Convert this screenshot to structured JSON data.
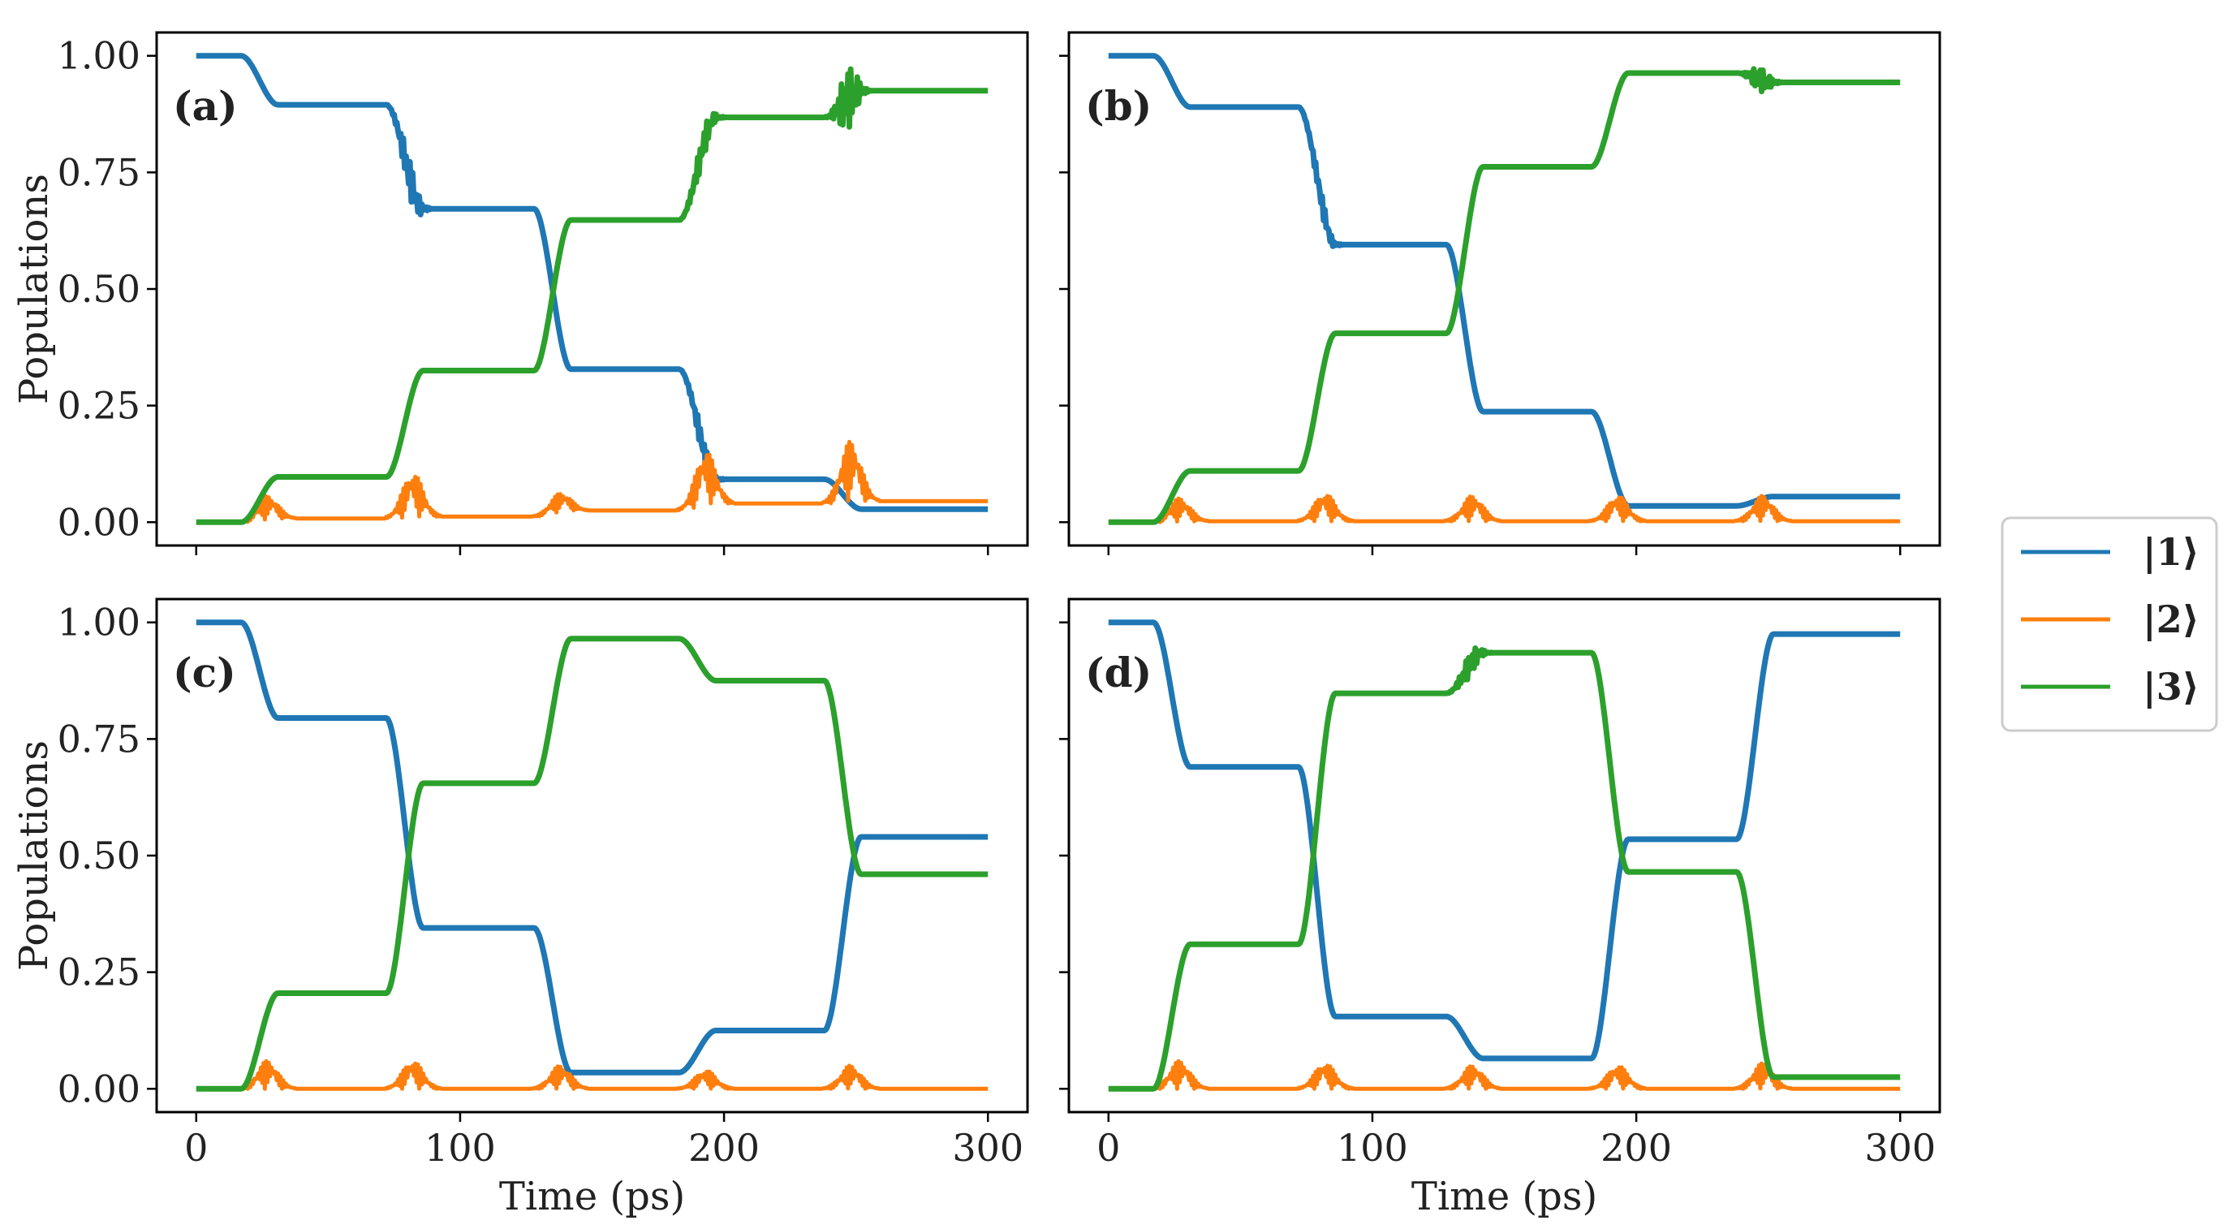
{
  "chart_data": [
    {
      "type": "line",
      "panel": "(a)",
      "xlabel": "",
      "ylabel": "Populations",
      "xlim": [
        -15,
        315
      ],
      "ylim": [
        -0.05,
        1.05
      ],
      "xticks": [
        0,
        100,
        200,
        300
      ],
      "yticks": [
        0.0,
        0.25,
        0.5,
        0.75,
        1.0
      ],
      "show_x_tick_labels": false,
      "show_y_tick_labels": true,
      "series": [
        {
          "name": "|1⟩",
          "color": "#1f77b4",
          "steps": [
            [
              0,
              1.0
            ],
            [
              31,
              0.895
            ],
            [
              86,
              0.672
            ],
            [
              142,
              0.328
            ],
            [
              197,
              0.092
            ],
            [
              252,
              0.028
            ]
          ],
          "width": 7,
          "osc": [
            [
              86,
              0.08
            ],
            [
              197,
              0.05
            ]
          ]
        },
        {
          "name": "|2⟩",
          "color": "#ff7f0e",
          "steps": [
            [
              0,
              0.0
            ],
            [
              31,
              0.008
            ],
            [
              86,
              0.012
            ],
            [
              142,
              0.025
            ],
            [
              197,
              0.04
            ],
            [
              252,
              0.045
            ]
          ],
          "width": 5,
          "bursts": [
            [
              31,
              0.05
            ],
            [
              86,
              0.095
            ],
            [
              142,
              0.04
            ],
            [
              197,
              0.115
            ],
            [
              252,
              0.13
            ]
          ]
        },
        {
          "name": "|3⟩",
          "color": "#2ca02c",
          "steps": [
            [
              0,
              0.0
            ],
            [
              31,
              0.097
            ],
            [
              86,
              0.325
            ],
            [
              142,
              0.648
            ],
            [
              197,
              0.868
            ],
            [
              252,
              0.925
            ]
          ],
          "width": 7,
          "osc": [
            [
              197,
              0.06
            ],
            [
              252,
              0.13
            ]
          ]
        }
      ]
    },
    {
      "type": "line",
      "panel": "(b)",
      "xlabel": "",
      "ylabel": "",
      "xlim": [
        -15,
        315
      ],
      "ylim": [
        -0.05,
        1.05
      ],
      "xticks": [
        0,
        100,
        200,
        300
      ],
      "yticks": [
        0.0,
        0.25,
        0.5,
        0.75,
        1.0
      ],
      "show_x_tick_labels": false,
      "show_y_tick_labels": false,
      "series": [
        {
          "name": "|1⟩",
          "color": "#1f77b4",
          "steps": [
            [
              0,
              1.0
            ],
            [
              31,
              0.89
            ],
            [
              86,
              0.595
            ],
            [
              142,
              0.237
            ],
            [
              197,
              0.035
            ],
            [
              252,
              0.055
            ]
          ],
          "width": 7,
          "osc": [
            [
              86,
              0.04
            ]
          ]
        },
        {
          "name": "|2⟩",
          "color": "#ff7f0e",
          "steps": [
            [
              0,
              0.0
            ],
            [
              31,
              0.002
            ],
            [
              86,
              0.002
            ],
            [
              142,
              0.002
            ],
            [
              197,
              0.002
            ],
            [
              252,
              0.002
            ]
          ],
          "width": 5,
          "bursts": [
            [
              31,
              0.05
            ],
            [
              86,
              0.06
            ],
            [
              142,
              0.055
            ],
            [
              197,
              0.055
            ],
            [
              252,
              0.055
            ]
          ]
        },
        {
          "name": "|3⟩",
          "color": "#2ca02c",
          "steps": [
            [
              0,
              0.0
            ],
            [
              31,
              0.11
            ],
            [
              86,
              0.405
            ],
            [
              142,
              0.762
            ],
            [
              197,
              0.963
            ],
            [
              252,
              0.943
            ]
          ],
          "width": 7,
          "osc": [
            [
              252,
              0.05
            ]
          ]
        }
      ]
    },
    {
      "type": "line",
      "panel": "(c)",
      "xlabel": "Time (ps)",
      "ylabel": "Populations",
      "xlim": [
        -15,
        315
      ],
      "ylim": [
        -0.05,
        1.05
      ],
      "xticks": [
        0,
        100,
        200,
        300
      ],
      "yticks": [
        0.0,
        0.25,
        0.5,
        0.75,
        1.0
      ],
      "show_x_tick_labels": true,
      "show_y_tick_labels": true,
      "series": [
        {
          "name": "|1⟩",
          "color": "#1f77b4",
          "steps": [
            [
              0,
              1.0
            ],
            [
              31,
              0.795
            ],
            [
              86,
              0.345
            ],
            [
              142,
              0.035
            ],
            [
              197,
              0.125
            ],
            [
              252,
              0.54
            ]
          ],
          "width": 7
        },
        {
          "name": "|2⟩",
          "color": "#ff7f0e",
          "steps": [
            [
              0,
              0.0
            ],
            [
              31,
              0.0
            ],
            [
              86,
              0.0
            ],
            [
              142,
              0.0
            ],
            [
              197,
              0.0
            ],
            [
              252,
              0.0
            ]
          ],
          "width": 5,
          "bursts": [
            [
              31,
              0.06
            ],
            [
              86,
              0.06
            ],
            [
              142,
              0.05
            ],
            [
              197,
              0.04
            ],
            [
              252,
              0.05
            ]
          ]
        },
        {
          "name": "|3⟩",
          "color": "#2ca02c",
          "steps": [
            [
              0,
              0.0
            ],
            [
              31,
              0.205
            ],
            [
              86,
              0.655
            ],
            [
              142,
              0.965
            ],
            [
              197,
              0.875
            ],
            [
              252,
              0.46
            ]
          ],
          "width": 7
        },
        {
          "name": "|3⟩",
          "color": "#2ca02c",
          "steps": [],
          "width": 7
        }
      ]
    },
    {
      "type": "line",
      "panel": "(d)",
      "xlabel": "Time (ps)",
      "ylabel": "",
      "xlim": [
        -15,
        315
      ],
      "ylim": [
        -0.05,
        1.05
      ],
      "xticks": [
        0,
        100,
        200,
        300
      ],
      "yticks": [
        0.0,
        0.25,
        0.5,
        0.75,
        1.0
      ],
      "show_x_tick_labels": true,
      "show_y_tick_labels": false,
      "series": [
        {
          "name": "|1⟩",
          "color": "#1f77b4",
          "steps": [
            [
              0,
              1.0
            ],
            [
              31,
              0.69
            ],
            [
              86,
              0.155
            ],
            [
              142,
              0.065
            ],
            [
              197,
              0.535
            ],
            [
              252,
              0.975
            ]
          ],
          "width": 7
        },
        {
          "name": "|2⟩",
          "color": "#ff7f0e",
          "steps": [
            [
              0,
              0.0
            ],
            [
              31,
              0.0
            ],
            [
              86,
              0.0
            ],
            [
              142,
              0.0
            ],
            [
              197,
              0.0
            ],
            [
              252,
              0.0
            ]
          ],
          "width": 5,
          "bursts": [
            [
              31,
              0.06
            ],
            [
              86,
              0.055
            ],
            [
              142,
              0.05
            ],
            [
              197,
              0.05
            ],
            [
              252,
              0.055
            ]
          ]
        },
        {
          "name": "|3⟩",
          "color": "#2ca02c",
          "steps": [
            [
              0,
              0.0
            ],
            [
              31,
              0.31
            ],
            [
              86,
              0.848
            ],
            [
              142,
              0.935
            ],
            [
              197,
              0.465
            ],
            [
              252,
              0.025
            ]
          ],
          "width": 7,
          "osc": [
            [
              142,
              0.05
            ]
          ]
        }
      ]
    }
  ],
  "legend": {
    "placement": "right",
    "entries": [
      {
        "label": "|1⟩",
        "color": "#1f77b4"
      },
      {
        "label": "|2⟩",
        "color": "#ff7f0e"
      },
      {
        "label": "|3⟩",
        "color": "#2ca02c"
      }
    ]
  }
}
